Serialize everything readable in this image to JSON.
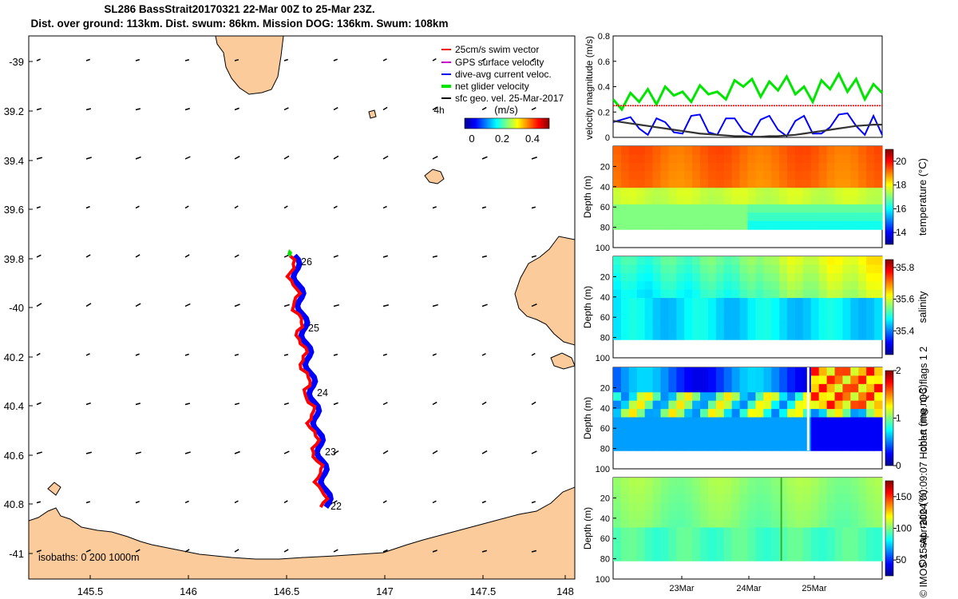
{
  "header": {
    "title_line1": "SL286 BassStrait20170321 22-Mar 00Z to 25-Mar 23Z.",
    "title_line2": "Dist. over ground: 113km. Dist. swum: 86km. Mission DOG: 136km. Swum: 108km"
  },
  "credit": "© IMOS 15-Apr-2024 00:09:07 Hobart time. QC flags 1  2",
  "colors": {
    "land": "#fbcb9c",
    "swim": "#ff0000",
    "gps": "#cc00cc",
    "dive_avg": "#0000ff",
    "net": "#00e600",
    "sfc_geo": "#000000",
    "speed_black": "#333333"
  },
  "map": {
    "legend": [
      {
        "label": "25cm/s swim vector",
        "color": "#ff0000"
      },
      {
        "label": "GPS surface velocity",
        "color": "#cc00cc"
      },
      {
        "label": "dive-avg current veloc.",
        "color": "#0000ff"
      },
      {
        "label": "net glider velocity",
        "color": "#00e600"
      },
      {
        "label": "sfc geo. vel. 25-Mar-2017",
        "color": "#000000"
      }
    ],
    "colorbar_title": "(m/s)",
    "colorbar_note": "4h",
    "colorbar_ticks": [
      "0",
      "0.2",
      "0.4"
    ],
    "isobaths_label": "isobaths: 0   200  1000m",
    "lon_ticks": [
      "145.5",
      "146",
      "146.5",
      "147",
      "147.5",
      "148"
    ],
    "lat_ticks": [
      "-39",
      "39.2",
      "39.4",
      "39.6",
      "39.8",
      "-40",
      "40.2",
      "40.4",
      "40.6",
      "40.8",
      "-41"
    ],
    "day_labels": [
      "26",
      "25",
      "24",
      "23",
      "22"
    ]
  },
  "chart_data": [
    {
      "type": "line",
      "ylabel": "velocity magnitude (m/s)",
      "ylim": [
        0,
        0.8
      ],
      "yticks": [
        "0",
        "0.2",
        "0.4",
        "0.6",
        "0.8"
      ],
      "series": [
        {
          "values": [
            0.3,
            0.22,
            0.35,
            0.28,
            0.38,
            0.26,
            0.4,
            0.33,
            0.36,
            0.28,
            0.41,
            0.34,
            0.36,
            0.3,
            0.45,
            0.4,
            0.46,
            0.32,
            0.44,
            0.37,
            0.48,
            0.34,
            0.4,
            0.28,
            0.45,
            0.38,
            0.5,
            0.36,
            0.46,
            0.3,
            0.42,
            0.35
          ]
        },
        {
          "values": [
            0.25,
            0.25,
            0.25,
            0.25,
            0.25,
            0.25,
            0.25,
            0.25,
            0.25,
            0.25,
            0.25,
            0.25,
            0.25,
            0.25,
            0.25,
            0.25,
            0.25,
            0.25,
            0.25,
            0.25,
            0.25,
            0.25,
            0.25,
            0.25,
            0.25,
            0.25,
            0.25,
            0.25,
            0.25,
            0.25,
            0.25,
            0.25
          ]
        },
        {
          "values": [
            0.12,
            0.14,
            0.16,
            0.07,
            0.02,
            0.15,
            0.12,
            0.04,
            0.03,
            0.17,
            0.18,
            0.04,
            0.02,
            0.15,
            0.15,
            0.05,
            0.02,
            0.14,
            0.17,
            0.06,
            0.01,
            0.13,
            0.17,
            0.03,
            0.03,
            0.08,
            0.18,
            0.19,
            0.09,
            0.02,
            0.17,
            0.02
          ]
        },
        {
          "values": [
            0.13,
            0.12,
            0.11,
            0.1,
            0.09,
            0.08,
            0.07,
            0.06,
            0.05,
            0.04,
            0.03,
            0.025,
            0.02,
            0.015,
            0.01,
            0.01,
            0.005,
            0.005,
            0.01,
            0.01,
            0.015,
            0.02,
            0.03,
            0.04,
            0.05,
            0.06,
            0.07,
            0.08,
            0.09,
            0.095,
            0.1,
            0.1
          ]
        }
      ]
    },
    {
      "type": "heatmap",
      "ylabel": "Depth (m)",
      "clabel": "temperature (°C)",
      "ylim": [
        0,
        100
      ],
      "clim": [
        13,
        21
      ],
      "yticks": [
        "20",
        "40",
        "60",
        "80",
        "100"
      ],
      "cticks": [
        "20",
        "18",
        "16",
        "14"
      ]
    },
    {
      "type": "heatmap",
      "ylabel": "Depth (m)",
      "clabel": "salinity",
      "ylim": [
        0,
        100
      ],
      "clim": [
        35.25,
        35.85
      ],
      "yticks": [
        "20",
        "40",
        "60",
        "80",
        "100"
      ],
      "cticks": [
        "35.8",
        "35.6",
        "35.4"
      ]
    },
    {
      "type": "heatmap",
      "ylabel": "Depth (m)",
      "clabel": "chl-a (mg m-3)",
      "ylim": [
        0,
        100
      ],
      "clim": [
        0,
        2
      ],
      "yticks": [
        "20",
        "40",
        "60",
        "80",
        "100"
      ],
      "cticks": [
        "2",
        "1",
        "0"
      ]
    },
    {
      "type": "heatmap",
      "ylabel": "Depth (m)",
      "clabel": "Ox. sat. ratio (%)",
      "ylim": [
        0,
        100
      ],
      "clim": [
        25,
        175
      ],
      "yticks": [
        "20",
        "40",
        "60",
        "80",
        "100"
      ],
      "cticks": [
        "150",
        "100",
        "50"
      ],
      "xticks": [
        "23Mar",
        "24Mar",
        "25Mar"
      ]
    }
  ]
}
